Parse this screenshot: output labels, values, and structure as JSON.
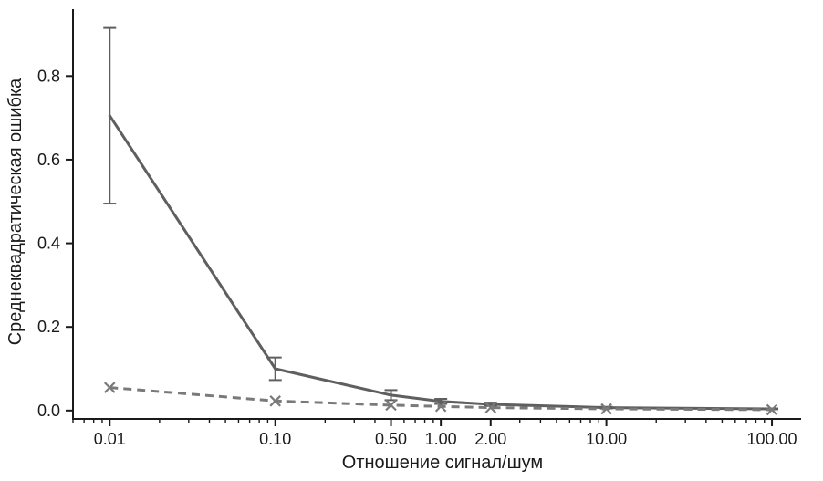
{
  "chart_data": {
    "type": "line",
    "title": "",
    "xlabel": "Отношение сигнал/шум",
    "ylabel": "Среднеквадратическая ошибка",
    "x_scale": "log",
    "xlim": [
      0.006,
      150
    ],
    "ylim": [
      -0.02,
      0.96
    ],
    "x_ticks": [
      0.01,
      0.1,
      0.5,
      1,
      2,
      10,
      100
    ],
    "x_tick_labels": [
      "0.01",
      "0.10",
      "0.50",
      "1.00",
      "2.00",
      "10.00",
      "100.00"
    ],
    "y_ticks": [
      0,
      0.2,
      0.4,
      0.6,
      0.8
    ],
    "y_tick_labels": [
      "0.0",
      "0.2",
      "0.4",
      "0.6",
      "0.8"
    ],
    "grid": false,
    "legend": "none",
    "series": [
      {
        "style": "solid",
        "color": "#5f5f5f",
        "marker": "none",
        "x": [
          0.01,
          0.1,
          0.5,
          1,
          2,
          10,
          100
        ],
        "y": [
          0.705,
          0.1,
          0.037,
          0.022,
          0.015,
          0.007,
          0.004
        ],
        "error": [
          0.21,
          0.027,
          0.012,
          0.006,
          0.004,
          0.002,
          0.001
        ]
      },
      {
        "style": "dashed",
        "color": "#7a7a7a",
        "marker": "x",
        "x": [
          0.01,
          0.1,
          0.5,
          1,
          2,
          10,
          100
        ],
        "y": [
          0.055,
          0.023,
          0.013,
          0.01,
          0.007,
          0.004,
          0.002
        ]
      }
    ]
  }
}
